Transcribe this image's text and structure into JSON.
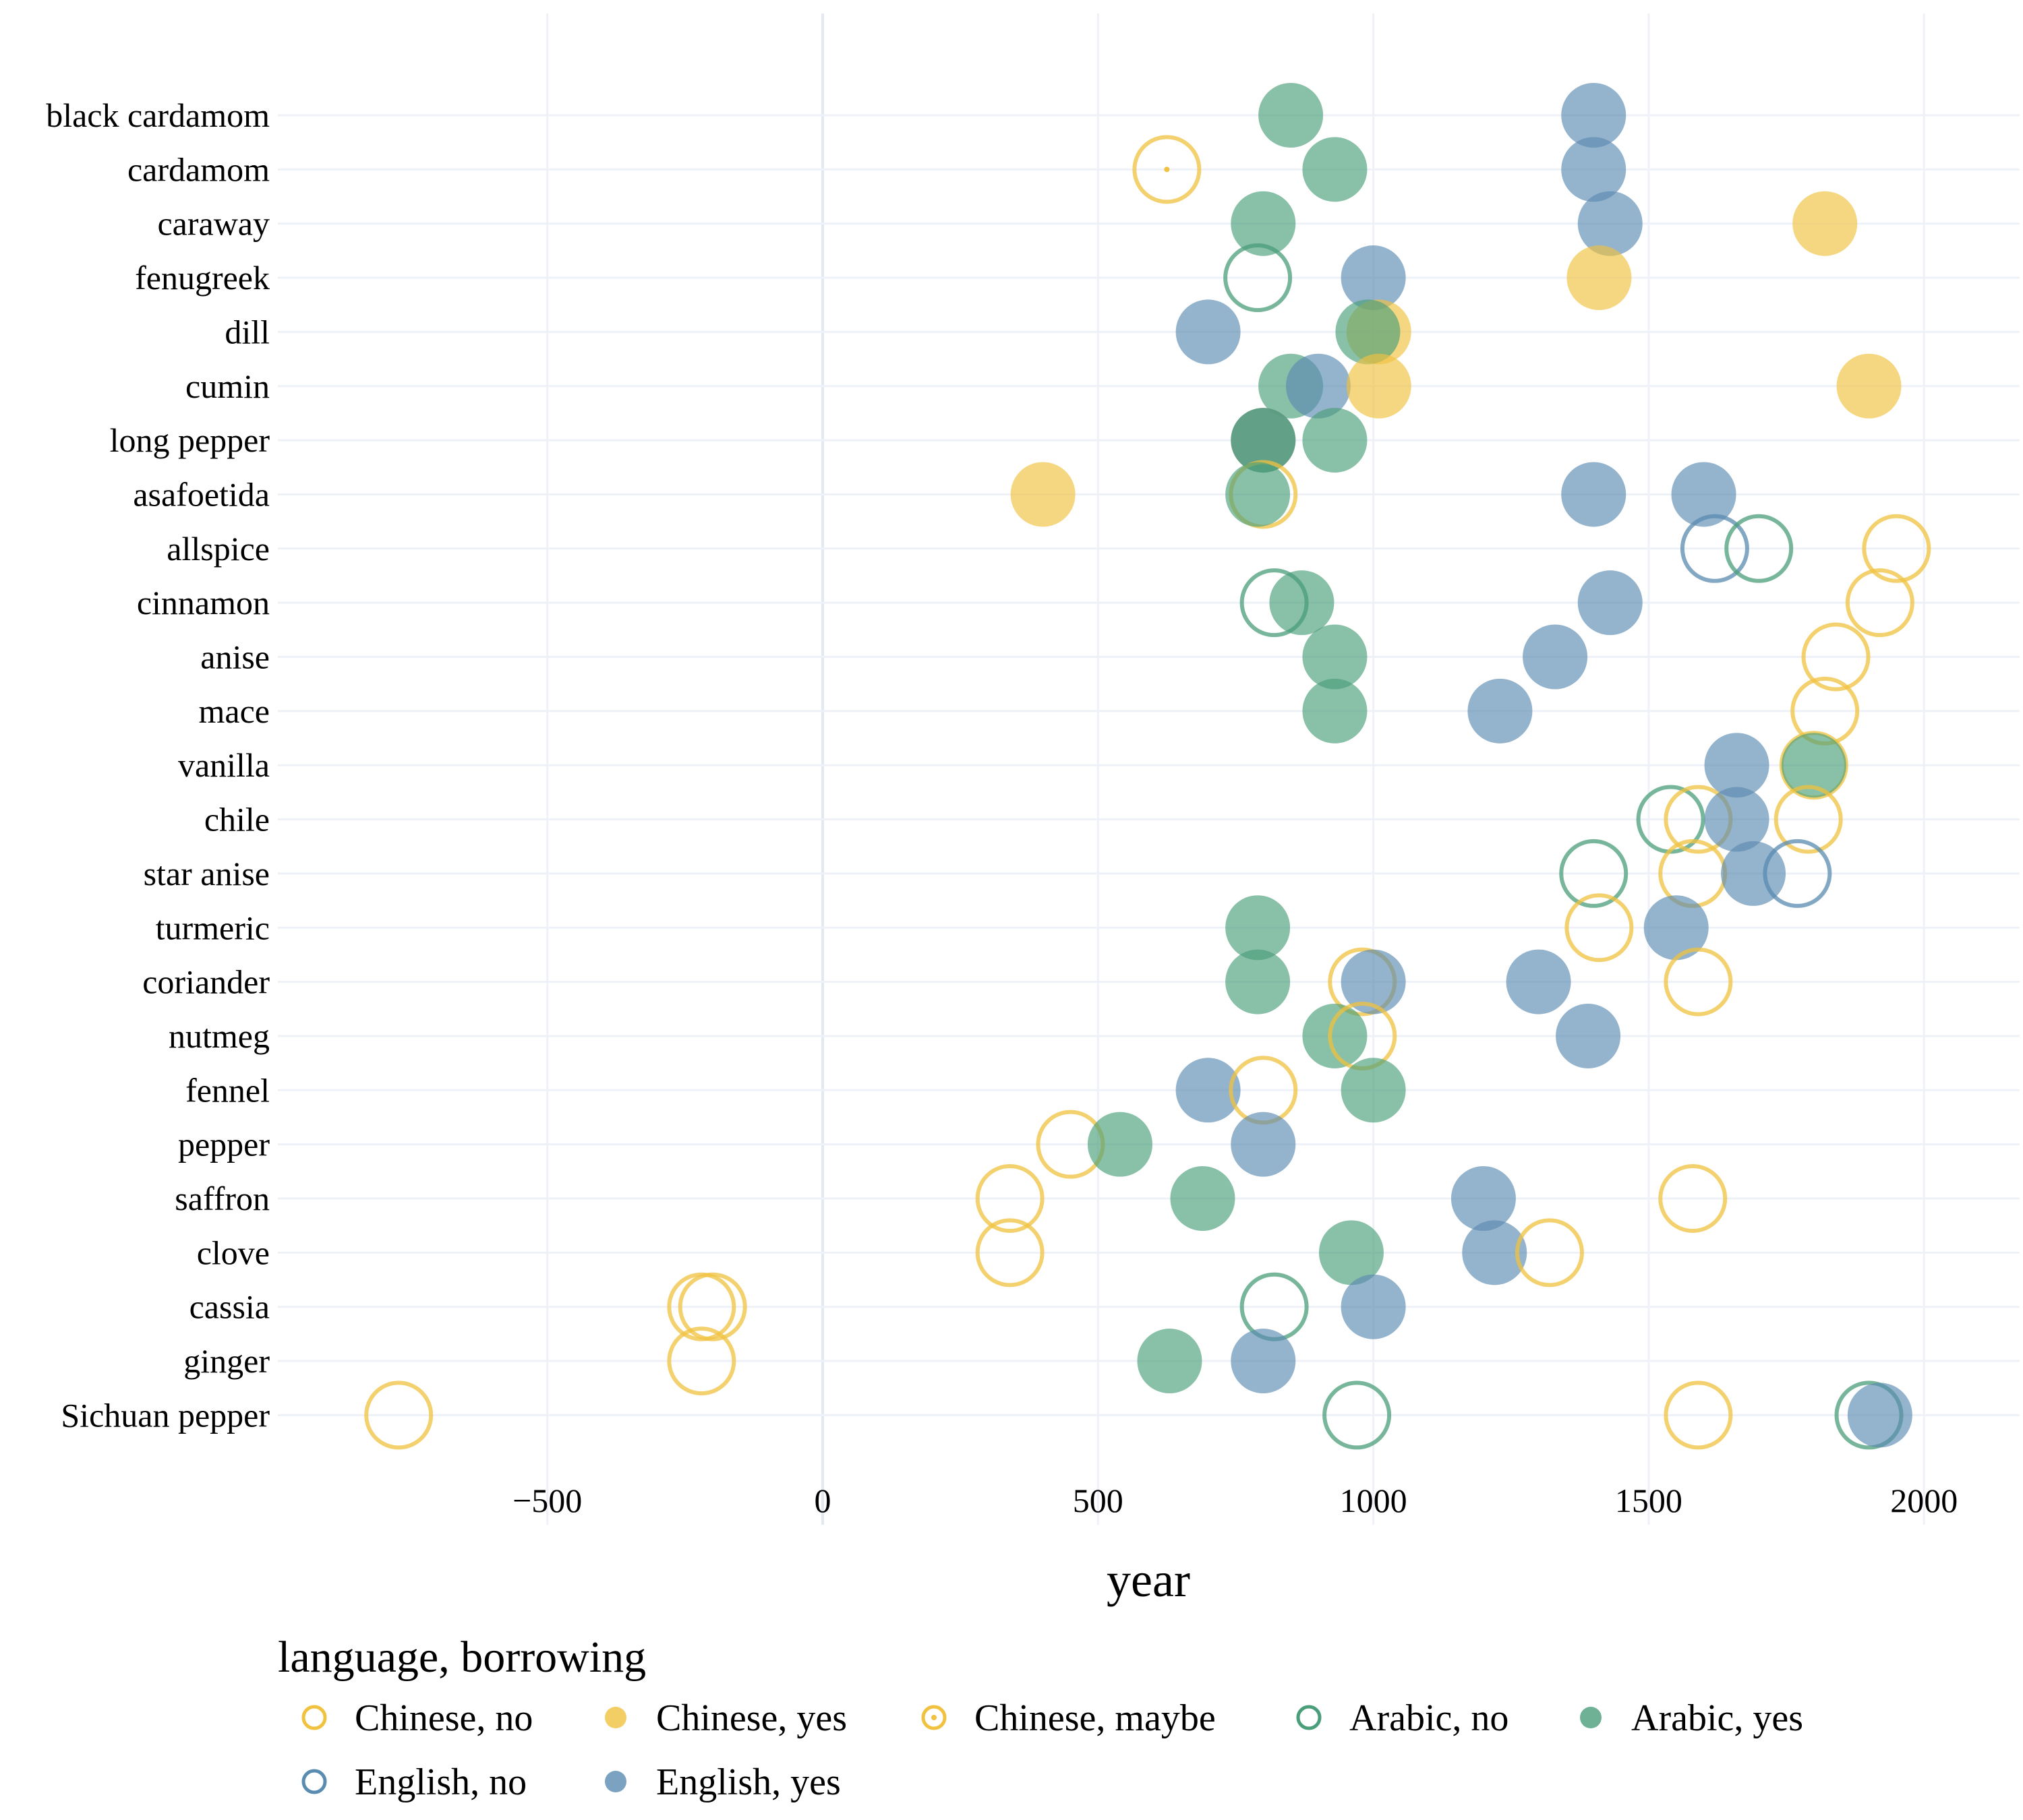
{
  "chart_data": {
    "type": "scatter",
    "xlabel": "year",
    "xlim": [
      -1000,
      2180
    ],
    "xticks": [
      -500,
      0,
      500,
      1000,
      1500,
      2000
    ],
    "xtick_labels": [
      "−500",
      "0",
      "500",
      "1000",
      "1500",
      "2000"
    ],
    "categories": [
      "black cardamom",
      "cardamom",
      "caraway",
      "fenugreek",
      "dill",
      "cumin",
      "long pepper",
      "asafoetida",
      "allspice",
      "cinnamon",
      "anise",
      "mace",
      "vanilla",
      "chile",
      "star anise",
      "turmeric",
      "coriander",
      "nutmeg",
      "fennel",
      "pepper",
      "saffron",
      "clove",
      "cassia",
      "ginger",
      "Sichuan pepper"
    ],
    "legend": {
      "title": "language, borrowing",
      "placement": "bottom",
      "entries": [
        {
          "key": "chinese_no",
          "label": "Chinese, no"
        },
        {
          "key": "chinese_yes",
          "label": "Chinese, yes"
        },
        {
          "key": "chinese_maybe",
          "label": "Chinese, maybe"
        },
        {
          "key": "arabic_no",
          "label": "Arabic, no"
        },
        {
          "key": "arabic_yes",
          "label": "Arabic, yes"
        },
        {
          "key": "english_no",
          "label": "English, no"
        },
        {
          "key": "english_yes",
          "label": "English, yes"
        }
      ]
    },
    "styles": {
      "chinese_no": {
        "color": "#F0C23F",
        "filled": false
      },
      "chinese_yes": {
        "color": "#F0C23F",
        "filled": true
      },
      "chinese_maybe": {
        "color": "#F0C23F",
        "filled": false
      },
      "arabic_no": {
        "color": "#4A9E79",
        "filled": false
      },
      "arabic_yes": {
        "color": "#4A9E79",
        "filled": true
      },
      "english_no": {
        "color": "#5A8BB0",
        "filled": false
      },
      "english_yes": {
        "color": "#5A8BB0",
        "filled": true
      }
    },
    "points": [
      {
        "spice": "black cardamom",
        "series": "arabic_yes",
        "year": 850
      },
      {
        "spice": "black cardamom",
        "series": "english_yes",
        "year": 1400
      },
      {
        "spice": "cardamom",
        "series": "chinese_maybe",
        "year": 625
      },
      {
        "spice": "cardamom",
        "series": "arabic_yes",
        "year": 930
      },
      {
        "spice": "cardamom",
        "series": "english_yes",
        "year": 1400
      },
      {
        "spice": "caraway",
        "series": "arabic_yes",
        "year": 800
      },
      {
        "spice": "caraway",
        "series": "english_yes",
        "year": 1430
      },
      {
        "spice": "caraway",
        "series": "chinese_yes",
        "year": 1820
      },
      {
        "spice": "fenugreek",
        "series": "arabic_no",
        "year": 790
      },
      {
        "spice": "fenugreek",
        "series": "english_yes",
        "year": 1000
      },
      {
        "spice": "fenugreek",
        "series": "chinese_yes",
        "year": 1410
      },
      {
        "spice": "dill",
        "series": "english_yes",
        "year": 700
      },
      {
        "spice": "dill",
        "series": "chinese_yes",
        "year": 1010
      },
      {
        "spice": "dill",
        "series": "arabic_yes",
        "year": 990
      },
      {
        "spice": "cumin",
        "series": "arabic_yes",
        "year": 850
      },
      {
        "spice": "cumin",
        "series": "english_yes",
        "year": 900
      },
      {
        "spice": "cumin",
        "series": "chinese_yes",
        "year": 1010
      },
      {
        "spice": "cumin",
        "series": "chinese_yes",
        "year": 1900
      },
      {
        "spice": "long pepper",
        "series": "chinese_yes",
        "year": 800
      },
      {
        "spice": "long pepper",
        "series": "english_yes",
        "year": 800
      },
      {
        "spice": "long pepper",
        "series": "arabic_yes",
        "year": 800
      },
      {
        "spice": "long pepper",
        "series": "arabic_yes",
        "year": 930
      },
      {
        "spice": "asafoetida",
        "series": "chinese_yes",
        "year": 400
      },
      {
        "spice": "asafoetida",
        "series": "chinese_no",
        "year": 800
      },
      {
        "spice": "asafoetida",
        "series": "arabic_yes",
        "year": 790
      },
      {
        "spice": "asafoetida",
        "series": "english_yes",
        "year": 1400
      },
      {
        "spice": "asafoetida",
        "series": "english_yes",
        "year": 1600
      },
      {
        "spice": "allspice",
        "series": "english_no",
        "year": 1620
      },
      {
        "spice": "allspice",
        "series": "arabic_no",
        "year": 1700
      },
      {
        "spice": "allspice",
        "series": "chinese_no",
        "year": 1950
      },
      {
        "spice": "cinnamon",
        "series": "arabic_no",
        "year": 820
      },
      {
        "spice": "cinnamon",
        "series": "arabic_yes",
        "year": 870
      },
      {
        "spice": "cinnamon",
        "series": "english_yes",
        "year": 1430
      },
      {
        "spice": "cinnamon",
        "series": "chinese_no",
        "year": 1920
      },
      {
        "spice": "anise",
        "series": "arabic_yes",
        "year": 930
      },
      {
        "spice": "anise",
        "series": "english_yes",
        "year": 1330
      },
      {
        "spice": "anise",
        "series": "chinese_no",
        "year": 1840
      },
      {
        "spice": "mace",
        "series": "arabic_yes",
        "year": 930
      },
      {
        "spice": "mace",
        "series": "english_yes",
        "year": 1230
      },
      {
        "spice": "mace",
        "series": "chinese_no",
        "year": 1820
      },
      {
        "spice": "vanilla",
        "series": "english_yes",
        "year": 1660
      },
      {
        "spice": "vanilla",
        "series": "chinese_no",
        "year": 1800
      },
      {
        "spice": "vanilla",
        "series": "arabic_yes",
        "year": 1800
      },
      {
        "spice": "chile",
        "series": "arabic_no",
        "year": 1540
      },
      {
        "spice": "chile",
        "series": "chinese_no",
        "year": 1590
      },
      {
        "spice": "chile",
        "series": "english_yes",
        "year": 1660
      },
      {
        "spice": "chile",
        "series": "chinese_no",
        "year": 1790
      },
      {
        "spice": "star anise",
        "series": "arabic_no",
        "year": 1400
      },
      {
        "spice": "star anise",
        "series": "chinese_no",
        "year": 1580
      },
      {
        "spice": "star anise",
        "series": "english_yes",
        "year": 1690
      },
      {
        "spice": "star anise",
        "series": "english_no",
        "year": 1770
      },
      {
        "spice": "turmeric",
        "series": "arabic_yes",
        "year": 790
      },
      {
        "spice": "turmeric",
        "series": "chinese_no",
        "year": 1410
      },
      {
        "spice": "turmeric",
        "series": "english_yes",
        "year": 1550
      },
      {
        "spice": "coriander",
        "series": "arabic_yes",
        "year": 790
      },
      {
        "spice": "coriander",
        "series": "chinese_no",
        "year": 980
      },
      {
        "spice": "coriander",
        "series": "english_yes",
        "year": 1000
      },
      {
        "spice": "coriander",
        "series": "english_yes",
        "year": 1300
      },
      {
        "spice": "coriander",
        "series": "chinese_no",
        "year": 1590
      },
      {
        "spice": "nutmeg",
        "series": "arabic_yes",
        "year": 930
      },
      {
        "spice": "nutmeg",
        "series": "chinese_no",
        "year": 980
      },
      {
        "spice": "nutmeg",
        "series": "english_yes",
        "year": 1390
      },
      {
        "spice": "fennel",
        "series": "english_yes",
        "year": 700
      },
      {
        "spice": "fennel",
        "series": "chinese_no",
        "year": 800
      },
      {
        "spice": "fennel",
        "series": "arabic_yes",
        "year": 1000
      },
      {
        "spice": "pepper",
        "series": "chinese_no",
        "year": 450
      },
      {
        "spice": "pepper",
        "series": "arabic_yes",
        "year": 540
      },
      {
        "spice": "pepper",
        "series": "english_yes",
        "year": 800
      },
      {
        "spice": "saffron",
        "series": "chinese_no",
        "year": 340
      },
      {
        "spice": "saffron",
        "series": "arabic_yes",
        "year": 690
      },
      {
        "spice": "saffron",
        "series": "english_yes",
        "year": 1200
      },
      {
        "spice": "saffron",
        "series": "chinese_no",
        "year": 1580
      },
      {
        "spice": "clove",
        "series": "chinese_no",
        "year": 340
      },
      {
        "spice": "clove",
        "series": "arabic_yes",
        "year": 960
      },
      {
        "spice": "clove",
        "series": "english_yes",
        "year": 1220
      },
      {
        "spice": "clove",
        "series": "chinese_no",
        "year": 1320
      },
      {
        "spice": "cassia",
        "series": "chinese_no",
        "year": -220
      },
      {
        "spice": "cassia",
        "series": "chinese_no",
        "year": -200
      },
      {
        "spice": "cassia",
        "series": "arabic_no",
        "year": 820
      },
      {
        "spice": "cassia",
        "series": "english_yes",
        "year": 1000
      },
      {
        "spice": "ginger",
        "series": "chinese_no",
        "year": -220
      },
      {
        "spice": "ginger",
        "series": "arabic_yes",
        "year": 630
      },
      {
        "spice": "ginger",
        "series": "english_yes",
        "year": 800
      },
      {
        "spice": "Sichuan pepper",
        "series": "chinese_no",
        "year": -770
      },
      {
        "spice": "Sichuan pepper",
        "series": "arabic_no",
        "year": 970
      },
      {
        "spice": "Sichuan pepper",
        "series": "chinese_no",
        "year": 1590
      },
      {
        "spice": "Sichuan pepper",
        "series": "arabic_no",
        "year": 1900
      },
      {
        "spice": "Sichuan pepper",
        "series": "english_yes",
        "year": 1920
      }
    ]
  }
}
